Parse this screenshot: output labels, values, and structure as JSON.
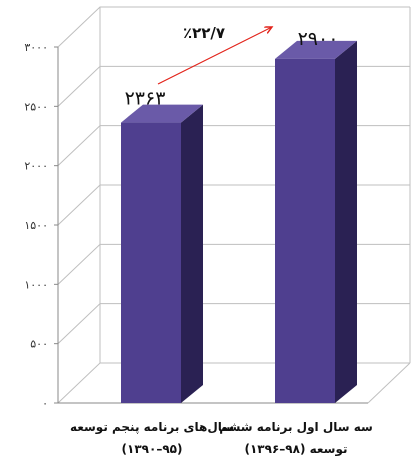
{
  "chart_data": {
    "type": "bar",
    "categories": [
      [
        "سال‌های برنامه پنجم توسعه",
        "(۹۵–۱۳۹۰)"
      ],
      [
        "سه سال اول برنامه ششم",
        "توسعه (۹۸–۱۳۹۶)"
      ]
    ],
    "values": [
      2363,
      2900
    ],
    "data_labels": [
      "۲۳۶۳",
      "۲۹۰۰"
    ],
    "ylim": [
      0,
      3000
    ],
    "yticks": [
      0,
      500,
      1000,
      1500,
      2000,
      2500,
      3000
    ],
    "ytick_labels": [
      "۰",
      "۵۰۰",
      "۱۰۰۰",
      "۱۵۰۰",
      "۲۰۰۰",
      "۲۵۰۰",
      "۳۰۰۰"
    ],
    "annotation": {
      "text": "٪۲۲/۷",
      "from_category": 0,
      "to_category": 1
    },
    "grid": true,
    "style": "3d",
    "colors": {
      "bar_front": "#4f3f8f",
      "bar_side": "#2a2153",
      "bar_top": "#6a5aa8",
      "grid": "#bfbfbf",
      "arrow": "#e2231a"
    }
  }
}
